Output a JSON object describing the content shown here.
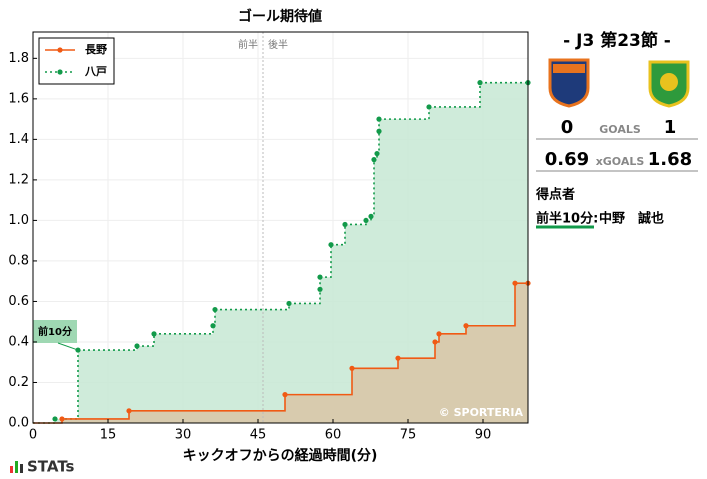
{
  "chart_data": {
    "type": "step",
    "title": "ゴール期待値",
    "x_label": "キックオフからの経過時間(分)",
    "xlim": [
      0,
      99
    ],
    "xticks": [
      0,
      15,
      30,
      45,
      60,
      75,
      90
    ],
    "ylim": [
      0,
      1.93
    ],
    "yticks": [
      {
        "value": 0,
        "label": "0.0"
      },
      {
        "value": 0.2,
        "label": "0.2"
      },
      {
        "value": 0.4,
        "label": "0.4"
      },
      {
        "value": 0.6,
        "label": "0.6"
      },
      {
        "value": 0.8,
        "label": "0.8"
      },
      {
        "value": 1.0,
        "label": "1.0"
      },
      {
        "value": 1.2,
        "label": "1.2"
      },
      {
        "value": 1.4,
        "label": "1.4"
      },
      {
        "value": 1.6,
        "label": "1.6"
      },
      {
        "value": 1.8,
        "label": "1.8"
      }
    ],
    "grid": true,
    "legend": "upper left",
    "halftime": 46,
    "period_labels": [
      "前半",
      "後半"
    ],
    "annotations": [
      {
        "text": "前10分",
        "x": 9,
        "y": 0.36
      }
    ],
    "watermark": "© SPORTERIA",
    "series": [
      {
        "name": "長野",
        "color": "#f05a14",
        "fill": "#d9c6a6",
        "dash": false,
        "x": [
          5.8,
          19.2,
          50.4,
          63.8,
          73,
          80.4,
          81.2,
          86.6,
          96.4,
          99
        ],
        "values": [
          0.02,
          0.06,
          0.14,
          0.27,
          0.32,
          0.4,
          0.44,
          0.48,
          0.69,
          0.69
        ]
      },
      {
        "name": "八戸",
        "color": "#129a4a",
        "fill": "#c7e8d3",
        "dash": true,
        "x": [
          4.4,
          9,
          20.8,
          24.2,
          36,
          36.4,
          51.2,
          57.4,
          57.4,
          59.6,
          62.4,
          66.6,
          67.6,
          68.2,
          68.8,
          69.2,
          69.2,
          79.2,
          89.4,
          99
        ],
        "values": [
          0.02,
          0.36,
          0.38,
          0.44,
          0.48,
          0.56,
          0.59,
          0.66,
          0.72,
          0.88,
          0.98,
          1.0,
          1.02,
          1.3,
          1.33,
          1.44,
          1.5,
          1.56,
          1.68,
          1.68
        ]
      }
    ]
  },
  "scoreboard": {
    "title": "- J3 第23節 -",
    "goals_label": "GOALS",
    "xg_label": "xGOALS",
    "home": {
      "goals": 0,
      "xg": 0.69
    },
    "away": {
      "goals": 1,
      "xg": 1.68
    },
    "scorers_title": "得点者",
    "scorers": [
      {
        "time": "前半10分:",
        "name": "中野　誠也"
      }
    ]
  },
  "brand": "STATs"
}
